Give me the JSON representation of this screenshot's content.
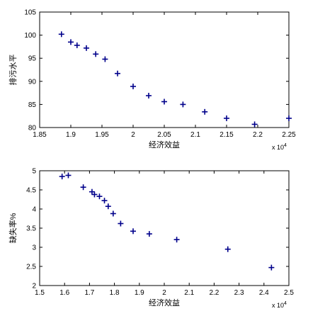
{
  "chart_data": [
    {
      "type": "scatter",
      "xlabel": "经济效益",
      "ylabel": "排污水平",
      "x_multiplier": "x 10",
      "x_multiplier_exp": "4",
      "xlim": [
        1.85,
        2.25
      ],
      "ylim": [
        80,
        105
      ],
      "xticks": [
        1.85,
        1.9,
        1.95,
        2,
        2.05,
        2.1,
        2.15,
        2.2,
        2.25
      ],
      "xtick_labels": [
        "1.85",
        "1.9",
        "1.95",
        "2",
        "2.05",
        "2.1",
        "2.15",
        "2.2",
        "2.25"
      ],
      "yticks": [
        80,
        85,
        90,
        95,
        100,
        105
      ],
      "ytick_labels": [
        "80",
        "85",
        "90",
        "95",
        "100",
        "105"
      ],
      "grid": false,
      "marker": "+",
      "color": "#00008b",
      "x": [
        1.885,
        1.9,
        1.91,
        1.925,
        1.94,
        1.955,
        1.975,
        2.0,
        2.025,
        2.05,
        2.08,
        2.115,
        2.15,
        2.195,
        2.25
      ],
      "y": [
        100.2,
        98.5,
        97.8,
        97.2,
        95.9,
        94.8,
        91.7,
        88.9,
        86.9,
        85.6,
        85.0,
        83.4,
        82.0,
        80.7,
        82.0
      ]
    },
    {
      "type": "scatter",
      "xlabel": "经济效益",
      "ylabel": "缺失率%",
      "x_multiplier": "x 10",
      "x_multiplier_exp": "4",
      "xlim": [
        1.5,
        2.5
      ],
      "ylim": [
        2,
        5
      ],
      "xticks": [
        1.5,
        1.6,
        1.7,
        1.8,
        1.9,
        2,
        2.1,
        2.2,
        2.3,
        2.4,
        2.5
      ],
      "xtick_labels": [
        "1.5",
        "1.6",
        "1.7",
        "1.8",
        "1.9",
        "2",
        "2.1",
        "2.2",
        "2.3",
        "2.4",
        "2.5"
      ],
      "yticks": [
        2,
        2.5,
        3,
        3.5,
        4,
        4.5,
        5
      ],
      "ytick_labels": [
        "2",
        "2.5",
        "3",
        "3.5",
        "4",
        "4.5",
        "5"
      ],
      "grid": false,
      "marker": "+",
      "color": "#00008b",
      "x": [
        1.59,
        1.615,
        1.675,
        1.71,
        1.72,
        1.74,
        1.76,
        1.775,
        1.795,
        1.825,
        1.875,
        1.94,
        2.05,
        2.255,
        2.43
      ],
      "y": [
        4.85,
        4.88,
        4.57,
        4.45,
        4.38,
        4.33,
        4.22,
        4.07,
        3.88,
        3.62,
        3.42,
        3.35,
        3.2,
        2.95,
        2.47
      ]
    }
  ]
}
